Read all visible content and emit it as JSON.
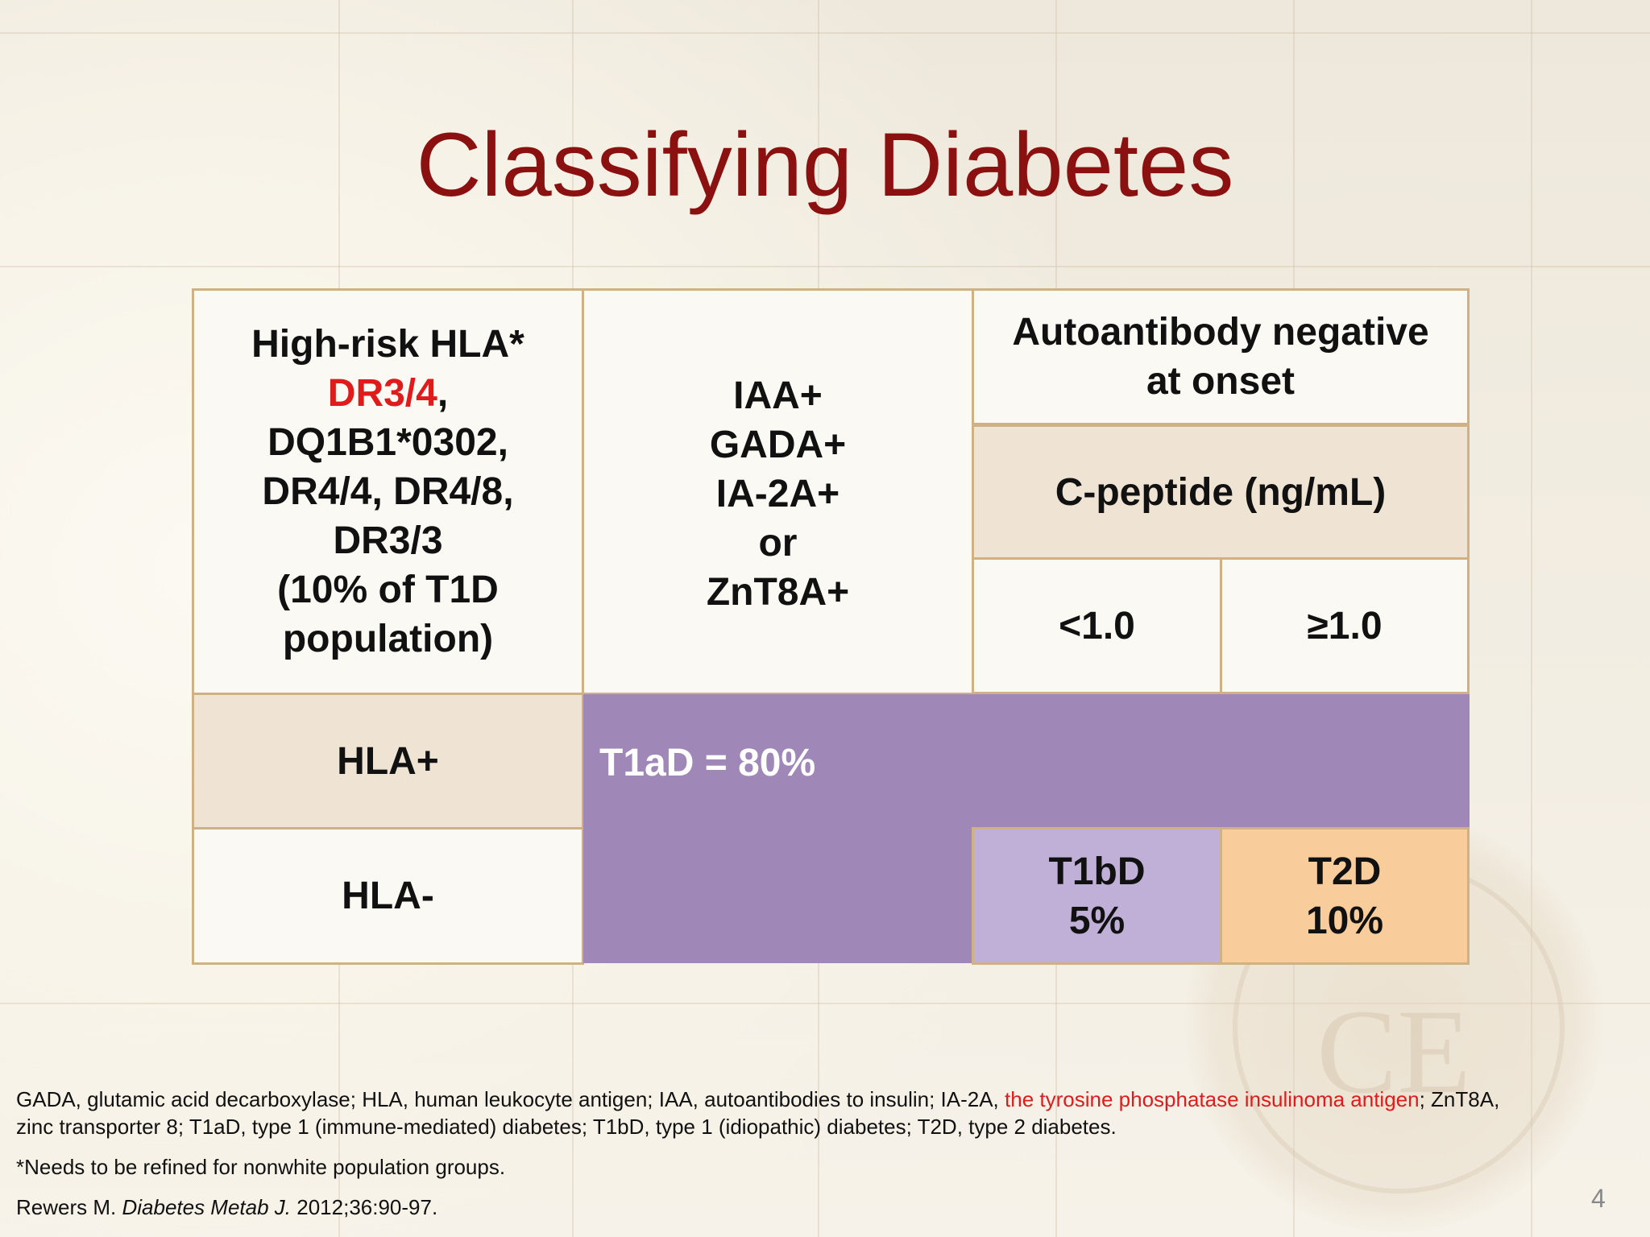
{
  "slide": {
    "title": "Classifying Diabetes",
    "page_number": "4"
  },
  "table": {
    "hla_header": {
      "line1": "High-risk HLA*",
      "highlight": "DR3/4",
      "comma": ",",
      "line3": "DQ1B1*0302,",
      "line4": "DR4/4, DR4/8,",
      "line5": "DR3/3",
      "line6": "(10% of T1D",
      "line7": "population)"
    },
    "antibody_header": {
      "lines": [
        "IAA+",
        "GADA+",
        "IA-2A+",
        "or",
        "ZnT8A+"
      ]
    },
    "negative_header": {
      "line1": "Autoantibody negative",
      "line2": "at onset"
    },
    "cpeptide_header": "C-peptide (ng/mL)",
    "cpeptide_low": "<1.0",
    "cpeptide_high": "≥1.0",
    "row_hla_pos": "HLA+",
    "row_hla_neg": "HLA-",
    "t1ad": "T1aD = 80%",
    "t1bd": {
      "name": "T1bD",
      "percent": "5%"
    },
    "t2d": {
      "name": "T2D",
      "percent": "10%"
    }
  },
  "footnotes": {
    "abbrev_part1": "GADA, glutamic acid decarboxylase; HLA, human leukocyte antigen; IAA, autoantibodies to insulin; IA-2A, ",
    "abbrev_highlight": "the tyrosine phosphatase insulinoma antigen",
    "abbrev_part2": "; ZnT8A, zinc transporter 8; T1aD, type 1 (immune-mediated)  diabetes; T1bD, type 1 (idiopathic) diabetes; T2D, type 2 diabetes.",
    "refine_note": "*Needs to be refined for nonwhite population groups.",
    "ref_author": "Rewers M. ",
    "ref_journal": "Diabetes Metab J.",
    "ref_details": " 2012;36:90-97."
  },
  "colors": {
    "title": "#8b1010",
    "highlight_red": "#e01b1b",
    "t1ad_fill": "#9f88b8",
    "t1bd_fill": "#c0afd6",
    "t2d_fill": "#f8cd9b",
    "header_tan": "#efe4d4",
    "border": "#cfb184"
  }
}
